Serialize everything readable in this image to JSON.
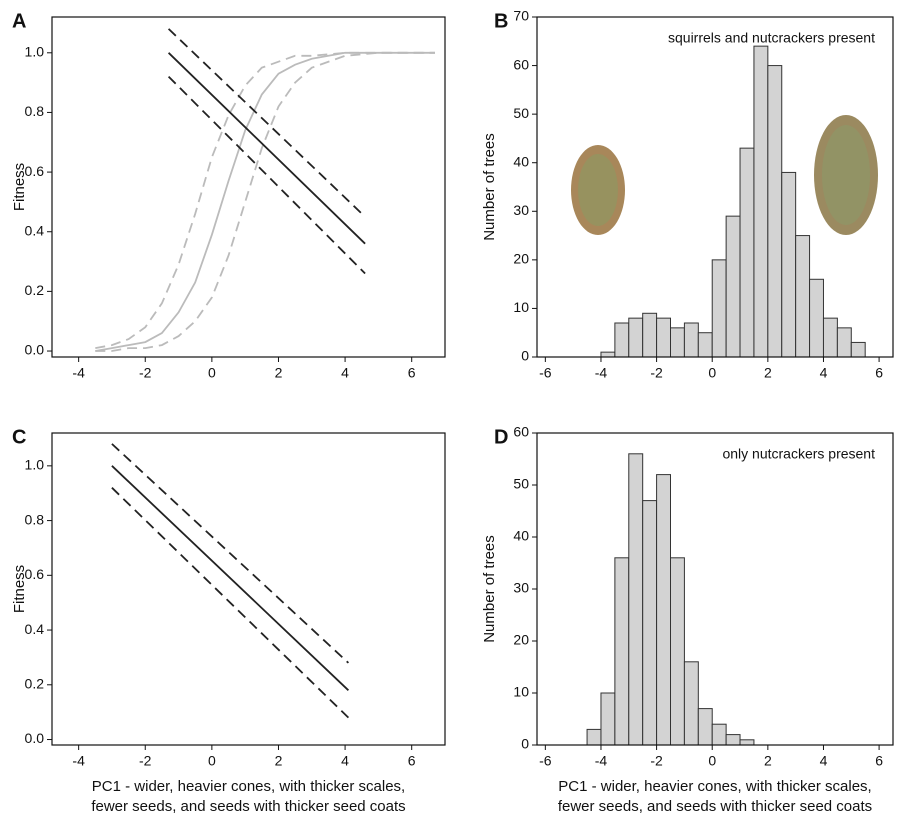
{
  "chart_data": [
    {
      "type": "line",
      "panel_label": "A",
      "y_label": "Fitness",
      "xlim": [
        -4.8,
        7
      ],
      "ylim": [
        -0.02,
        1.12
      ],
      "xticks": [
        -4,
        -2,
        0,
        2,
        4,
        6
      ],
      "yticks": [
        {
          "value": 0,
          "label": "0.0"
        },
        {
          "value": 0.2,
          "label": "0.2"
        },
        {
          "value": 0.4,
          "label": "0.4"
        },
        {
          "value": 0.6,
          "label": "0.6"
        },
        {
          "value": 0.8,
          "label": "0.8"
        },
        {
          "value": 1,
          "label": "1.0"
        }
      ],
      "series": [
        {
          "color": "#bbbbbb",
          "dash": true,
          "x": [
            -3.5,
            -3,
            -2.5,
            -2,
            -1.5,
            -1,
            -0.5,
            0,
            0.5,
            1,
            1.5,
            2,
            2.5,
            3,
            4,
            5,
            6,
            6.7
          ],
          "values": [
            0.01,
            0.02,
            0.04,
            0.08,
            0.16,
            0.29,
            0.46,
            0.65,
            0.79,
            0.89,
            0.95,
            0.97,
            0.99,
            0.99,
            1,
            1,
            1,
            1
          ]
        },
        {
          "color": "#bbbbbb",
          "dash": false,
          "x": [
            -3.5,
            -3,
            -2.5,
            -2,
            -1.5,
            -1,
            -0.5,
            0,
            0.5,
            1,
            1.5,
            2,
            2.5,
            3,
            4,
            5,
            6,
            6.7
          ],
          "values": [
            0,
            0.01,
            0.02,
            0.03,
            0.06,
            0.13,
            0.23,
            0.39,
            0.57,
            0.74,
            0.86,
            0.93,
            0.96,
            0.98,
            1,
            1,
            1,
            1
          ]
        },
        {
          "color": "#bbbbbb",
          "dash": true,
          "x": [
            -3.5,
            -3,
            -2.5,
            -2,
            -1.5,
            -1,
            -0.5,
            0,
            0.5,
            1,
            1.5,
            2,
            2.5,
            3,
            4,
            5,
            6,
            6.7
          ],
          "values": [
            0,
            0,
            0.01,
            0.01,
            0.02,
            0.05,
            0.1,
            0.18,
            0.32,
            0.5,
            0.68,
            0.82,
            0.9,
            0.95,
            0.99,
            1,
            1,
            1
          ]
        },
        {
          "color": "#222222",
          "dash": true,
          "x": [
            -1.3,
            4.6
          ],
          "values": [
            1.08,
            0.45
          ]
        },
        {
          "color": "#222222",
          "dash": false,
          "x": [
            -1.3,
            4.6
          ],
          "values": [
            1.0,
            0.36
          ]
        },
        {
          "color": "#222222",
          "dash": true,
          "x": [
            -1.3,
            4.6
          ],
          "values": [
            0.92,
            0.26
          ]
        }
      ]
    },
    {
      "type": "histogram",
      "panel_label": "B",
      "y_label": "Number of trees",
      "annotation": "squirrels and nutcrackers present",
      "xlim": [
        -6.3,
        6.5
      ],
      "ylim": [
        0,
        70
      ],
      "xticks": [
        -6,
        -4,
        -2,
        0,
        2,
        4,
        6
      ],
      "yticks": [
        0,
        10,
        20,
        30,
        40,
        50,
        60,
        70
      ],
      "color": "#d3d3d3",
      "bins": [
        -4,
        -3.5,
        -3,
        -2.5,
        -2,
        -1.5,
        -1,
        -0.5,
        0,
        0.5,
        1,
        1.5,
        2,
        2.5,
        3,
        3.5,
        4,
        4.5,
        5,
        5.5
      ],
      "values": [
        1,
        7,
        8,
        9,
        8,
        6,
        7,
        5,
        20,
        29,
        43,
        64,
        60,
        38,
        25,
        16,
        8,
        6,
        3
      ]
    },
    {
      "type": "line",
      "panel_label": "C",
      "y_label": "Fitness",
      "x_label": [
        "PC1 - wider, heavier cones, with thicker scales,",
        "fewer seeds, and seeds with thicker seed coats"
      ],
      "xlim": [
        -4.8,
        7
      ],
      "ylim": [
        -0.02,
        1.12
      ],
      "xticks": [
        -4,
        -2,
        0,
        2,
        4,
        6
      ],
      "yticks": [
        {
          "value": 0,
          "label": "0.0"
        },
        {
          "value": 0.2,
          "label": "0.2"
        },
        {
          "value": 0.4,
          "label": "0.4"
        },
        {
          "value": 0.6,
          "label": "0.6"
        },
        {
          "value": 0.8,
          "label": "0.8"
        },
        {
          "value": 1,
          "label": "1.0"
        }
      ],
      "series": [
        {
          "color": "#222222",
          "dash": true,
          "x": [
            -3,
            4.1
          ],
          "values": [
            1.08,
            0.28
          ]
        },
        {
          "color": "#222222",
          "dash": false,
          "x": [
            -3,
            4.1
          ],
          "values": [
            1.0,
            0.18
          ]
        },
        {
          "color": "#222222",
          "dash": true,
          "x": [
            -3,
            4.1
          ],
          "values": [
            0.92,
            0.08
          ]
        }
      ]
    },
    {
      "type": "histogram",
      "panel_label": "D",
      "y_label": "Number of trees",
      "annotation": "only nutcrackers present",
      "x_label": [
        "PC1 - wider, heavier cones, with thicker scales,",
        "fewer seeds, and seeds with thicker seed coats"
      ],
      "xlim": [
        -6.3,
        6.5
      ],
      "ylim": [
        0,
        60
      ],
      "xticks": [
        -6,
        -4,
        -2,
        0,
        2,
        4,
        6
      ],
      "yticks": [
        0,
        10,
        20,
        30,
        40,
        50,
        60
      ],
      "color": "#d3d3d3",
      "bins": [
        -4.5,
        -4,
        -3.5,
        -3,
        -2.5,
        -2,
        -1.5,
        -1,
        -0.5,
        0,
        0.5,
        1,
        1.5
      ],
      "values": [
        3,
        10,
        36,
        56,
        47,
        52,
        36,
        16,
        7,
        4,
        2,
        1
      ]
    }
  ]
}
